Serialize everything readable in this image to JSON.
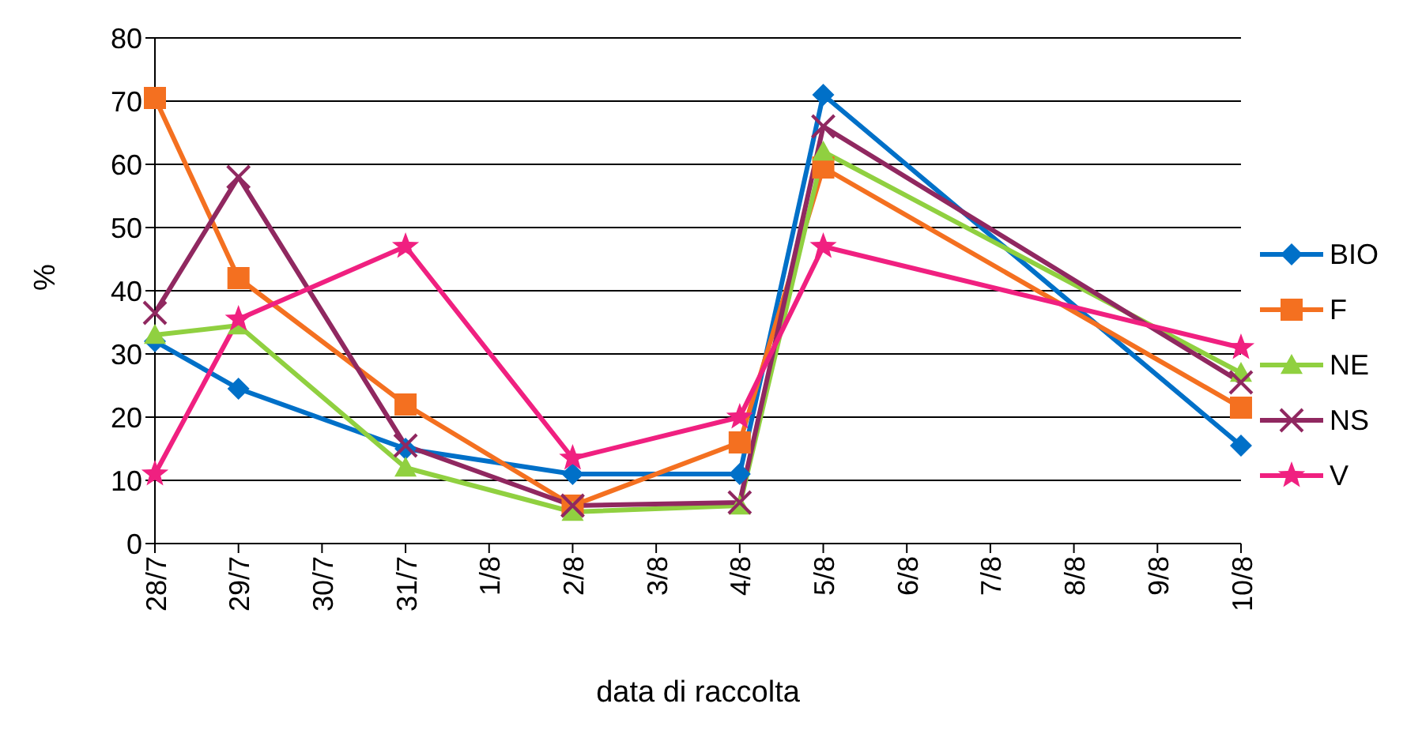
{
  "chart_data": {
    "type": "line",
    "xlabel": "data di raccolta",
    "ylabel": "%",
    "categories": [
      "28/7",
      "29/7",
      "30/7",
      "31/7",
      "1/8",
      "2/8",
      "3/8",
      "4/8",
      "5/8",
      "6/8",
      "7/8",
      "8/8",
      "9/8",
      "10/8"
    ],
    "series": [
      {
        "name": "BIO",
        "color": "#0070c8",
        "marker": "diamond",
        "values": [
          32,
          24.5,
          null,
          15,
          null,
          11,
          null,
          11,
          71,
          null,
          null,
          null,
          null,
          15.5
        ]
      },
      {
        "name": "F",
        "color": "#f47020",
        "marker": "square",
        "values": [
          70.5,
          42,
          null,
          22,
          null,
          6,
          null,
          16,
          59.5,
          null,
          null,
          null,
          null,
          21.5
        ]
      },
      {
        "name": "NE",
        "color": "#90d040",
        "marker": "triangle",
        "values": [
          33,
          34.5,
          null,
          12,
          null,
          5,
          null,
          6,
          62,
          null,
          null,
          null,
          null,
          27
        ]
      },
      {
        "name": "NS",
        "color": "#902860",
        "marker": "cross",
        "values": [
          36.5,
          58,
          null,
          15.5,
          null,
          6,
          null,
          6.5,
          66,
          null,
          null,
          null,
          null,
          25.5
        ]
      },
      {
        "name": "V",
        "color": "#f02080",
        "marker": "star",
        "values": [
          11,
          35.5,
          null,
          47,
          null,
          13.5,
          null,
          20,
          47,
          null,
          null,
          null,
          null,
          31
        ]
      }
    ],
    "ylim": [
      0,
      80
    ],
    "yticks": [
      0,
      10,
      20,
      30,
      40,
      50,
      60,
      70,
      80
    ],
    "grid": "y",
    "legend": "right"
  }
}
